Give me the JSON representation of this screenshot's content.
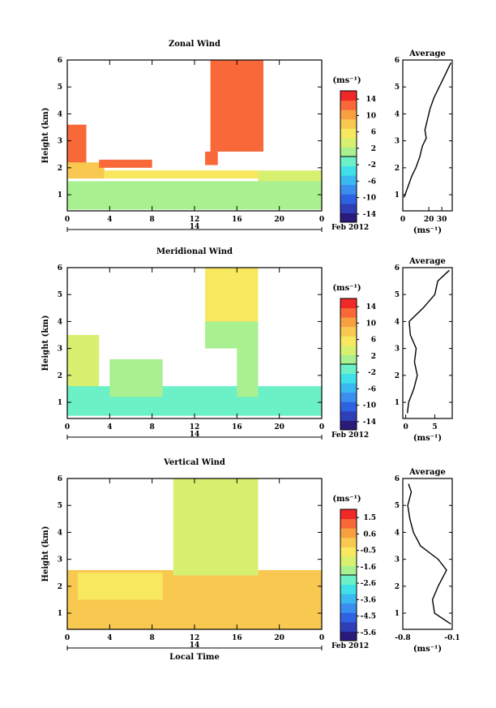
{
  "colorbar_colors": [
    "#2a1a7a",
    "#2f3fb8",
    "#2f62e0",
    "#3a8ef0",
    "#3ab8f0",
    "#3fe0e8",
    "#6cf0c8",
    "#a8f090",
    "#d8f070",
    "#f8e860",
    "#f8c850",
    "#f8a040",
    "#f86838",
    "#f02828"
  ],
  "chart_data": [
    {
      "type": "heatmap",
      "title": "Zonal Wind",
      "ylabel": "Height (km)",
      "xlabel": "",
      "x_ticks": [
        "0",
        "4",
        "8",
        "12",
        "16",
        "20",
        "0"
      ],
      "y_ticks": [
        "1",
        "2",
        "3",
        "4",
        "5",
        "6"
      ],
      "xlim": [
        0,
        24
      ],
      "ylim": [
        0.4,
        6
      ],
      "date_label": "14",
      "date_suffix": "Feb 2012",
      "colorbar": {
        "unit": "(ms⁻¹)",
        "ticks": [
          "14",
          "10",
          "6",
          "2",
          "-2",
          "-6",
          "-10",
          "-14"
        ],
        "range": [
          -16,
          16
        ]
      },
      "regions": [
        {
          "x": [
            0,
            1.8
          ],
          "y": [
            2.0,
            3.6
          ],
          "v": 13
        },
        {
          "x": [
            0,
            3.5
          ],
          "y": [
            1.6,
            2.2
          ],
          "v": 9
        },
        {
          "x": [
            3.5,
            18
          ],
          "y": [
            1.6,
            1.9
          ],
          "v": 6
        },
        {
          "x": [
            18,
            24
          ],
          "y": [
            1.5,
            1.9
          ],
          "v": 3
        },
        {
          "x": [
            13.5,
            18.5
          ],
          "y": [
            2.6,
            6
          ],
          "v": 13
        },
        {
          "x": [
            13.0,
            14.2
          ],
          "y": [
            2.1,
            2.6
          ],
          "v": 12
        },
        {
          "x": [
            0,
            24
          ],
          "y": [
            0.45,
            1.5
          ],
          "v": 0
        },
        {
          "x": [
            3.0,
            8.0
          ],
          "y": [
            2.0,
            2.3
          ],
          "v": 12
        }
      ],
      "profile": {
        "title": "Average",
        "xlabel": "(ms⁻¹)",
        "x_ticks": [
          "0",
          "20",
          "30"
        ],
        "xlim": [
          0,
          38
        ],
        "ylim": [
          0.4,
          6
        ],
        "y_ticks": [
          "1",
          "2",
          "3",
          "4",
          "5",
          "6"
        ],
        "points": [
          [
            1,
            0.9
          ],
          [
            4,
            1.3
          ],
          [
            7,
            1.7
          ],
          [
            10,
            2.0
          ],
          [
            13,
            2.4
          ],
          [
            15,
            2.8
          ],
          [
            18,
            3.1
          ],
          [
            17,
            3.4
          ],
          [
            19,
            3.8
          ],
          [
            21,
            4.2
          ],
          [
            24,
            4.6
          ],
          [
            28,
            5.0
          ],
          [
            31,
            5.3
          ],
          [
            34,
            5.6
          ],
          [
            37,
            5.9
          ]
        ]
      }
    },
    {
      "type": "heatmap",
      "title": "Meridional Wind",
      "ylabel": "Height (km)",
      "xlabel": "",
      "x_ticks": [
        "0",
        "4",
        "8",
        "12",
        "16",
        "20",
        "0"
      ],
      "y_ticks": [
        "1",
        "2",
        "3",
        "4",
        "5",
        "6"
      ],
      "xlim": [
        0,
        24
      ],
      "ylim": [
        0.4,
        6
      ],
      "date_label": "14",
      "date_suffix": "Feb 2012",
      "colorbar": {
        "unit": "(ms⁻¹)",
        "ticks": [
          "14",
          "10",
          "6",
          "2",
          "-2",
          "-6",
          "-10",
          "-14"
        ],
        "range": [
          -16,
          16
        ]
      },
      "regions": [
        {
          "x": [
            0,
            3
          ],
          "y": [
            0.8,
            3.5
          ],
          "v": 4
        },
        {
          "x": [
            0,
            24
          ],
          "y": [
            0.5,
            1.6
          ],
          "v": -1
        },
        {
          "x": [
            13,
            18
          ],
          "y": [
            4,
            6
          ],
          "v": 6
        },
        {
          "x": [
            13,
            18
          ],
          "y": [
            3,
            4
          ],
          "v": 0
        },
        {
          "x": [
            4,
            9
          ],
          "y": [
            1.2,
            2.6
          ],
          "v": 2
        },
        {
          "x": [
            16,
            18
          ],
          "y": [
            1.2,
            3.2
          ],
          "v": 1
        }
      ],
      "profile": {
        "title": "Average",
        "xlabel": "(ms⁻¹)",
        "x_ticks": [
          "0",
          "5"
        ],
        "xlim": [
          -0.5,
          8
        ],
        "ylim": [
          0.4,
          6
        ],
        "y_ticks": [
          "1",
          "2",
          "3",
          "4",
          "5",
          "6"
        ],
        "points": [
          [
            0.3,
            0.6
          ],
          [
            0.5,
            1.0
          ],
          [
            1.4,
            1.5
          ],
          [
            2.0,
            2.0
          ],
          [
            1.5,
            2.5
          ],
          [
            1.8,
            3.0
          ],
          [
            0.8,
            3.5
          ],
          [
            0.6,
            4.0
          ],
          [
            3.0,
            4.5
          ],
          [
            5.0,
            5.0
          ],
          [
            5.5,
            5.5
          ],
          [
            7.5,
            5.9
          ]
        ]
      }
    },
    {
      "type": "heatmap",
      "title": "Vertical Wind",
      "ylabel": "Height (km)",
      "xlabel": "Local Time",
      "x_ticks": [
        "0",
        "4",
        "8",
        "12",
        "16",
        "20",
        "0"
      ],
      "y_ticks": [
        "1",
        "2",
        "3",
        "4",
        "5",
        "6"
      ],
      "xlim": [
        0,
        24
      ],
      "ylim": [
        0.4,
        6
      ],
      "date_label": "14",
      "date_suffix": "Feb 2012",
      "colorbar": {
        "unit": "(ms⁻¹)",
        "ticks": [
          "1.5",
          "0.6",
          "-0.5",
          "-1.6",
          "-2.6",
          "-3.6",
          "-4.5",
          "-5.6"
        ],
        "range": [
          -6.1,
          2.0
        ]
      },
      "regions": [
        {
          "x": [
            0,
            24
          ],
          "y": [
            0.4,
            2.6
          ],
          "v": -0.2
        },
        {
          "x": [
            9,
            24
          ],
          "y": [
            0.4,
            2.4
          ],
          "v": 0.1
        },
        {
          "x": [
            10,
            18
          ],
          "y": [
            2.4,
            6
          ],
          "v": -1.3
        },
        {
          "x": [
            1,
            9
          ],
          "y": [
            1.5,
            2.5
          ],
          "v": -0.8
        }
      ],
      "profile": {
        "title": "Average",
        "xlabel": "(ms⁻¹)",
        "x_ticks": [
          "-0.8",
          "-0.1"
        ],
        "xlim": [
          -0.8,
          -0.1
        ],
        "ylim": [
          0.4,
          6
        ],
        "y_ticks": [
          "1",
          "2",
          "3",
          "4",
          "5",
          "6"
        ],
        "points": [
          [
            -0.12,
            0.6
          ],
          [
            -0.35,
            1.0
          ],
          [
            -0.38,
            1.5
          ],
          [
            -0.3,
            2.0
          ],
          [
            -0.18,
            2.6
          ],
          [
            -0.3,
            3.0
          ],
          [
            -0.55,
            3.5
          ],
          [
            -0.65,
            4.0
          ],
          [
            -0.7,
            4.5
          ],
          [
            -0.73,
            5.0
          ],
          [
            -0.68,
            5.5
          ],
          [
            -0.72,
            5.8
          ]
        ]
      }
    }
  ]
}
